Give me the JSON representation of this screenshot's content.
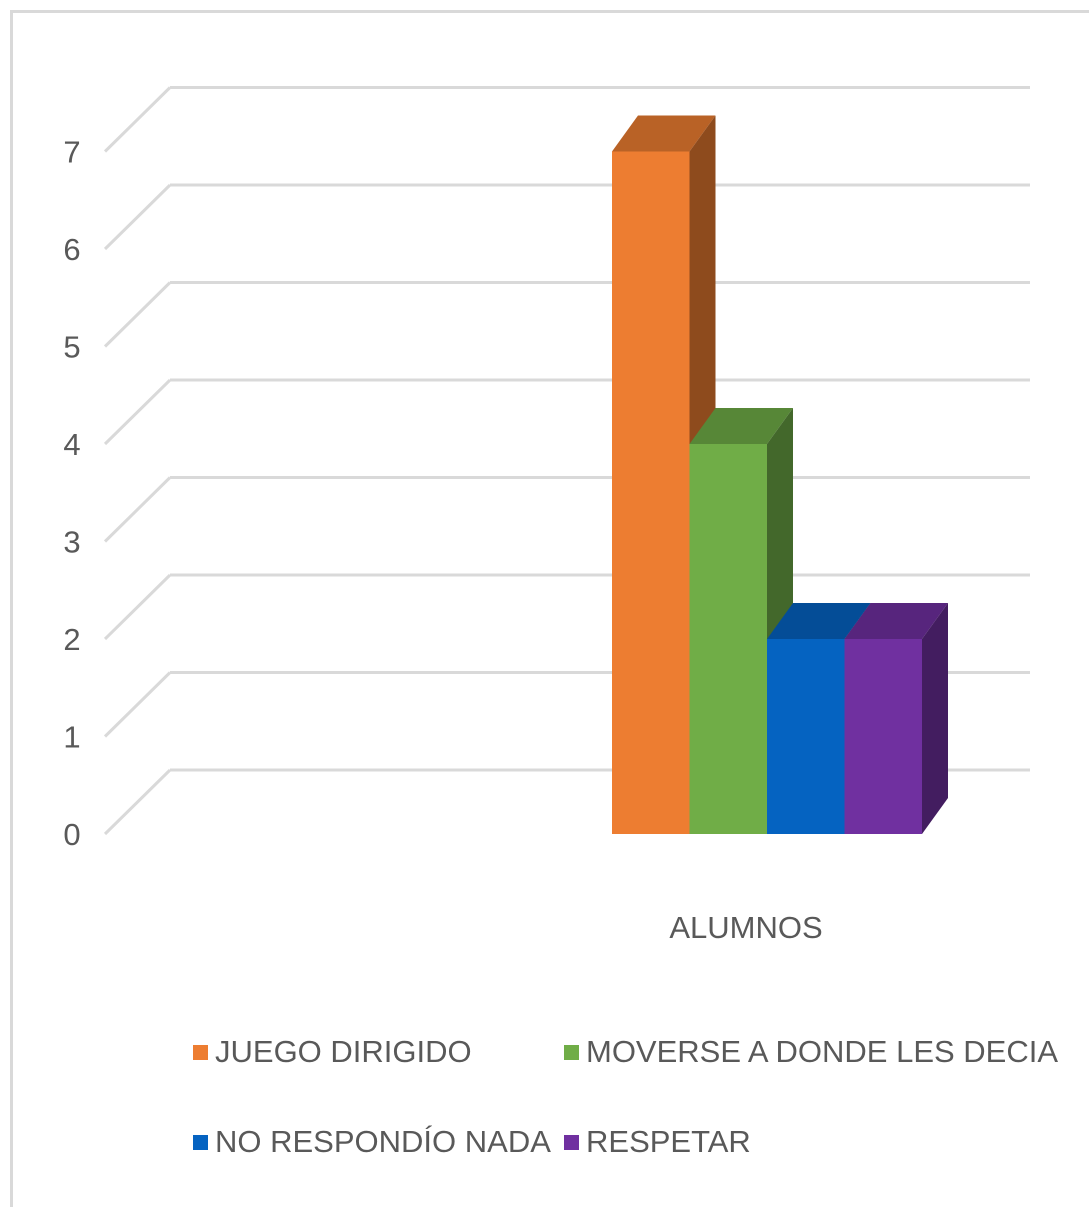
{
  "chart_data": {
    "type": "bar",
    "title": "",
    "xlabel": "",
    "ylabel": "",
    "categories": [
      "ALUMNOS"
    ],
    "ylim": [
      0,
      7
    ],
    "yticks": [
      "0",
      "1",
      "2",
      "3",
      "4",
      "5",
      "6",
      "7"
    ],
    "grid": true,
    "legend_position": "bottom",
    "series": [
      {
        "name": "JUEGO DIRIGIDO",
        "values": [
          7
        ],
        "color": "#ED7D31"
      },
      {
        "name": "MOVERSE A DONDE LES DECIA",
        "values": [
          4
        ],
        "color": "#70AD47"
      },
      {
        "name": "NO RESPONDÍO NADA",
        "values": [
          2
        ],
        "color": "#0563C1"
      },
      {
        "name": "RESPETAR",
        "values": [
          2
        ],
        "color": "#7030A0"
      }
    ]
  }
}
